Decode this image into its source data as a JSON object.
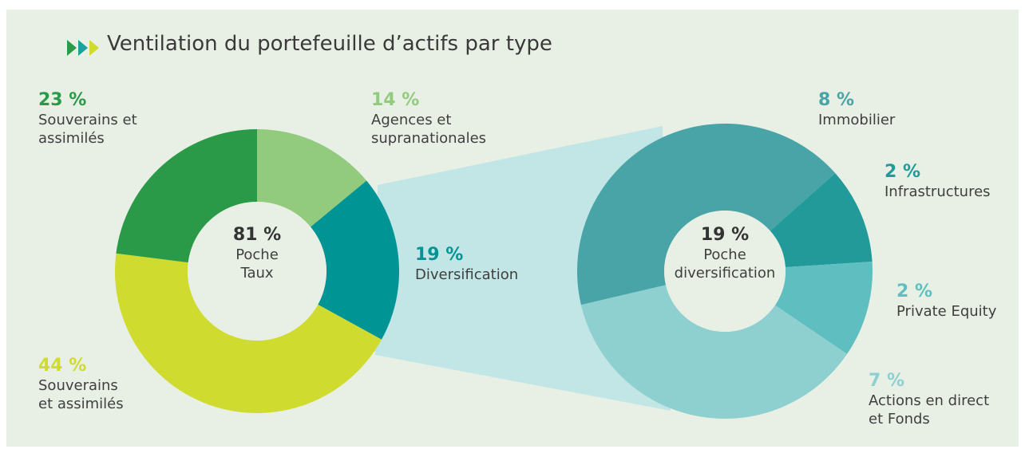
{
  "title": "Ventilation du portefeuille d’actifs par type",
  "chart_data": [
    {
      "type": "pie",
      "categories": [
        "Agences et\nsupranationales",
        "Diversification",
        "Souverains\net assimilés",
        "Souverains et\nassimilés"
      ],
      "values": [
        14,
        19,
        44,
        23
      ],
      "value_labels": [
        "14 %",
        "19 %",
        "44 %",
        "23 %"
      ],
      "colors": [
        "#93cb7e",
        "#009494",
        "#cfdc2f",
        "#2a9a48"
      ],
      "center_label": "81 %",
      "center_text": "Poche\nTaux"
    },
    {
      "type": "pie",
      "categories": [
        "Immobilier",
        "Infrastructures",
        "Private Equity",
        "Actions en direct\net Fonds"
      ],
      "values": [
        8,
        2,
        2,
        7
      ],
      "value_labels": [
        "8 %",
        "2 %",
        "2 %",
        "7 %"
      ],
      "colors": [
        "#48a4a6",
        "#229a9a",
        "#5fbfc0",
        "#8ecfcf"
      ],
      "center_label": "19 %",
      "center_text": "Poche\ndiversification"
    }
  ]
}
